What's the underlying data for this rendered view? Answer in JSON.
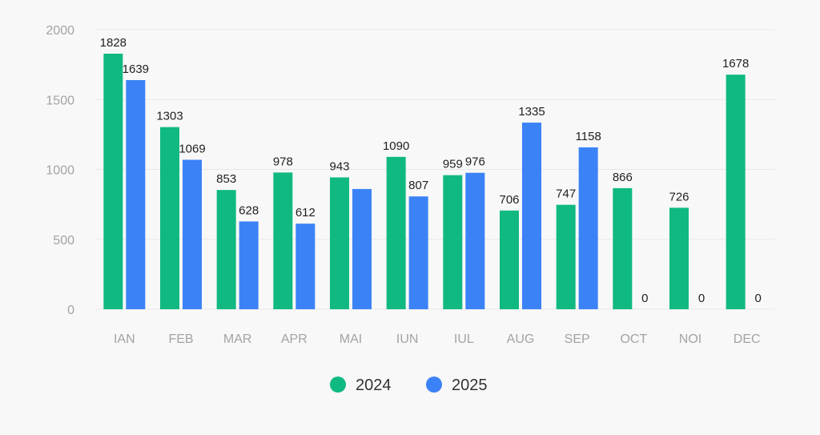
{
  "chart_data": {
    "type": "bar",
    "categories": [
      "IAN",
      "FEB",
      "MAR",
      "APR",
      "MAI",
      "IUN",
      "IUL",
      "AUG",
      "SEP",
      "OCT",
      "NOI",
      "DEC"
    ],
    "series": [
      {
        "name": "2024",
        "color": "#10b981",
        "values": [
          1828,
          1303,
          853,
          978,
          943,
          1090,
          959,
          706,
          747,
          866,
          726,
          1678
        ],
        "labels": [
          "1828",
          "1303",
          "853",
          "978",
          "943",
          "1090",
          "959",
          "706",
          "747",
          "866",
          "726",
          "1678"
        ]
      },
      {
        "name": "2025",
        "color": "#3b82f6",
        "values": [
          1639,
          1069,
          628,
          612,
          860,
          807,
          976,
          1335,
          1158,
          0,
          0,
          0
        ],
        "labels": [
          "1639",
          "1069",
          "628",
          "612",
          "",
          "807",
          "976",
          "1335",
          "1158",
          "0",
          "0",
          "0"
        ]
      }
    ],
    "yticks": [
      0,
      500,
      1000,
      1500,
      2000
    ],
    "ylim": [
      0,
      2000
    ],
    "title": "",
    "xlabel": "",
    "ylabel": "",
    "grid": true,
    "legend_position": "bottom-center"
  }
}
